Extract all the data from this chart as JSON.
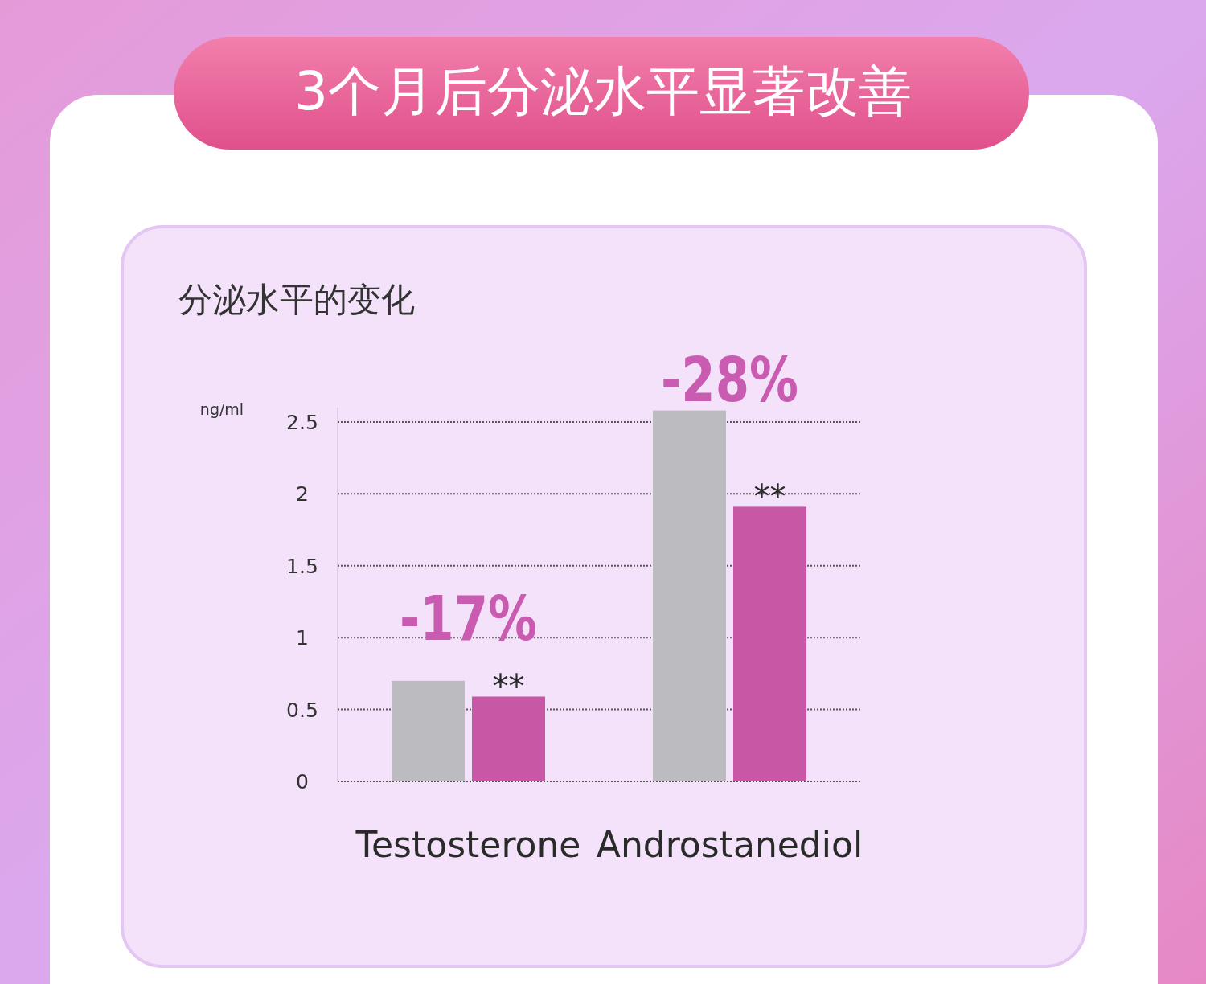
{
  "chart_data": {
    "type": "bar",
    "title": "3个月后分泌水平显著改善",
    "subtitle": "分泌水平的变化",
    "ylabel": "ng/ml",
    "categories": [
      "Testosterone",
      "Androstanediol"
    ],
    "series": [
      {
        "color": "#bcbbc0",
        "values": [
          0.7,
          2.58
        ]
      },
      {
        "color": "#c858a6",
        "values": [
          0.59,
          1.91
        ]
      }
    ],
    "ylim": [
      0,
      2.6
    ],
    "yticks": [
      0,
      0.5,
      1,
      1.5,
      2,
      2.5
    ],
    "grid": "y",
    "annotations": [
      {
        "text": "-17%",
        "x": "Testosterone",
        "y": 0.7
      },
      {
        "text": "-28%",
        "x": "Androstanediol",
        "y": 2.58
      },
      {
        "text": "**",
        "x": "Testosterone",
        "y": 0.59
      },
      {
        "text": "**",
        "x": "Androstanediol",
        "y": 1.91
      }
    ]
  }
}
